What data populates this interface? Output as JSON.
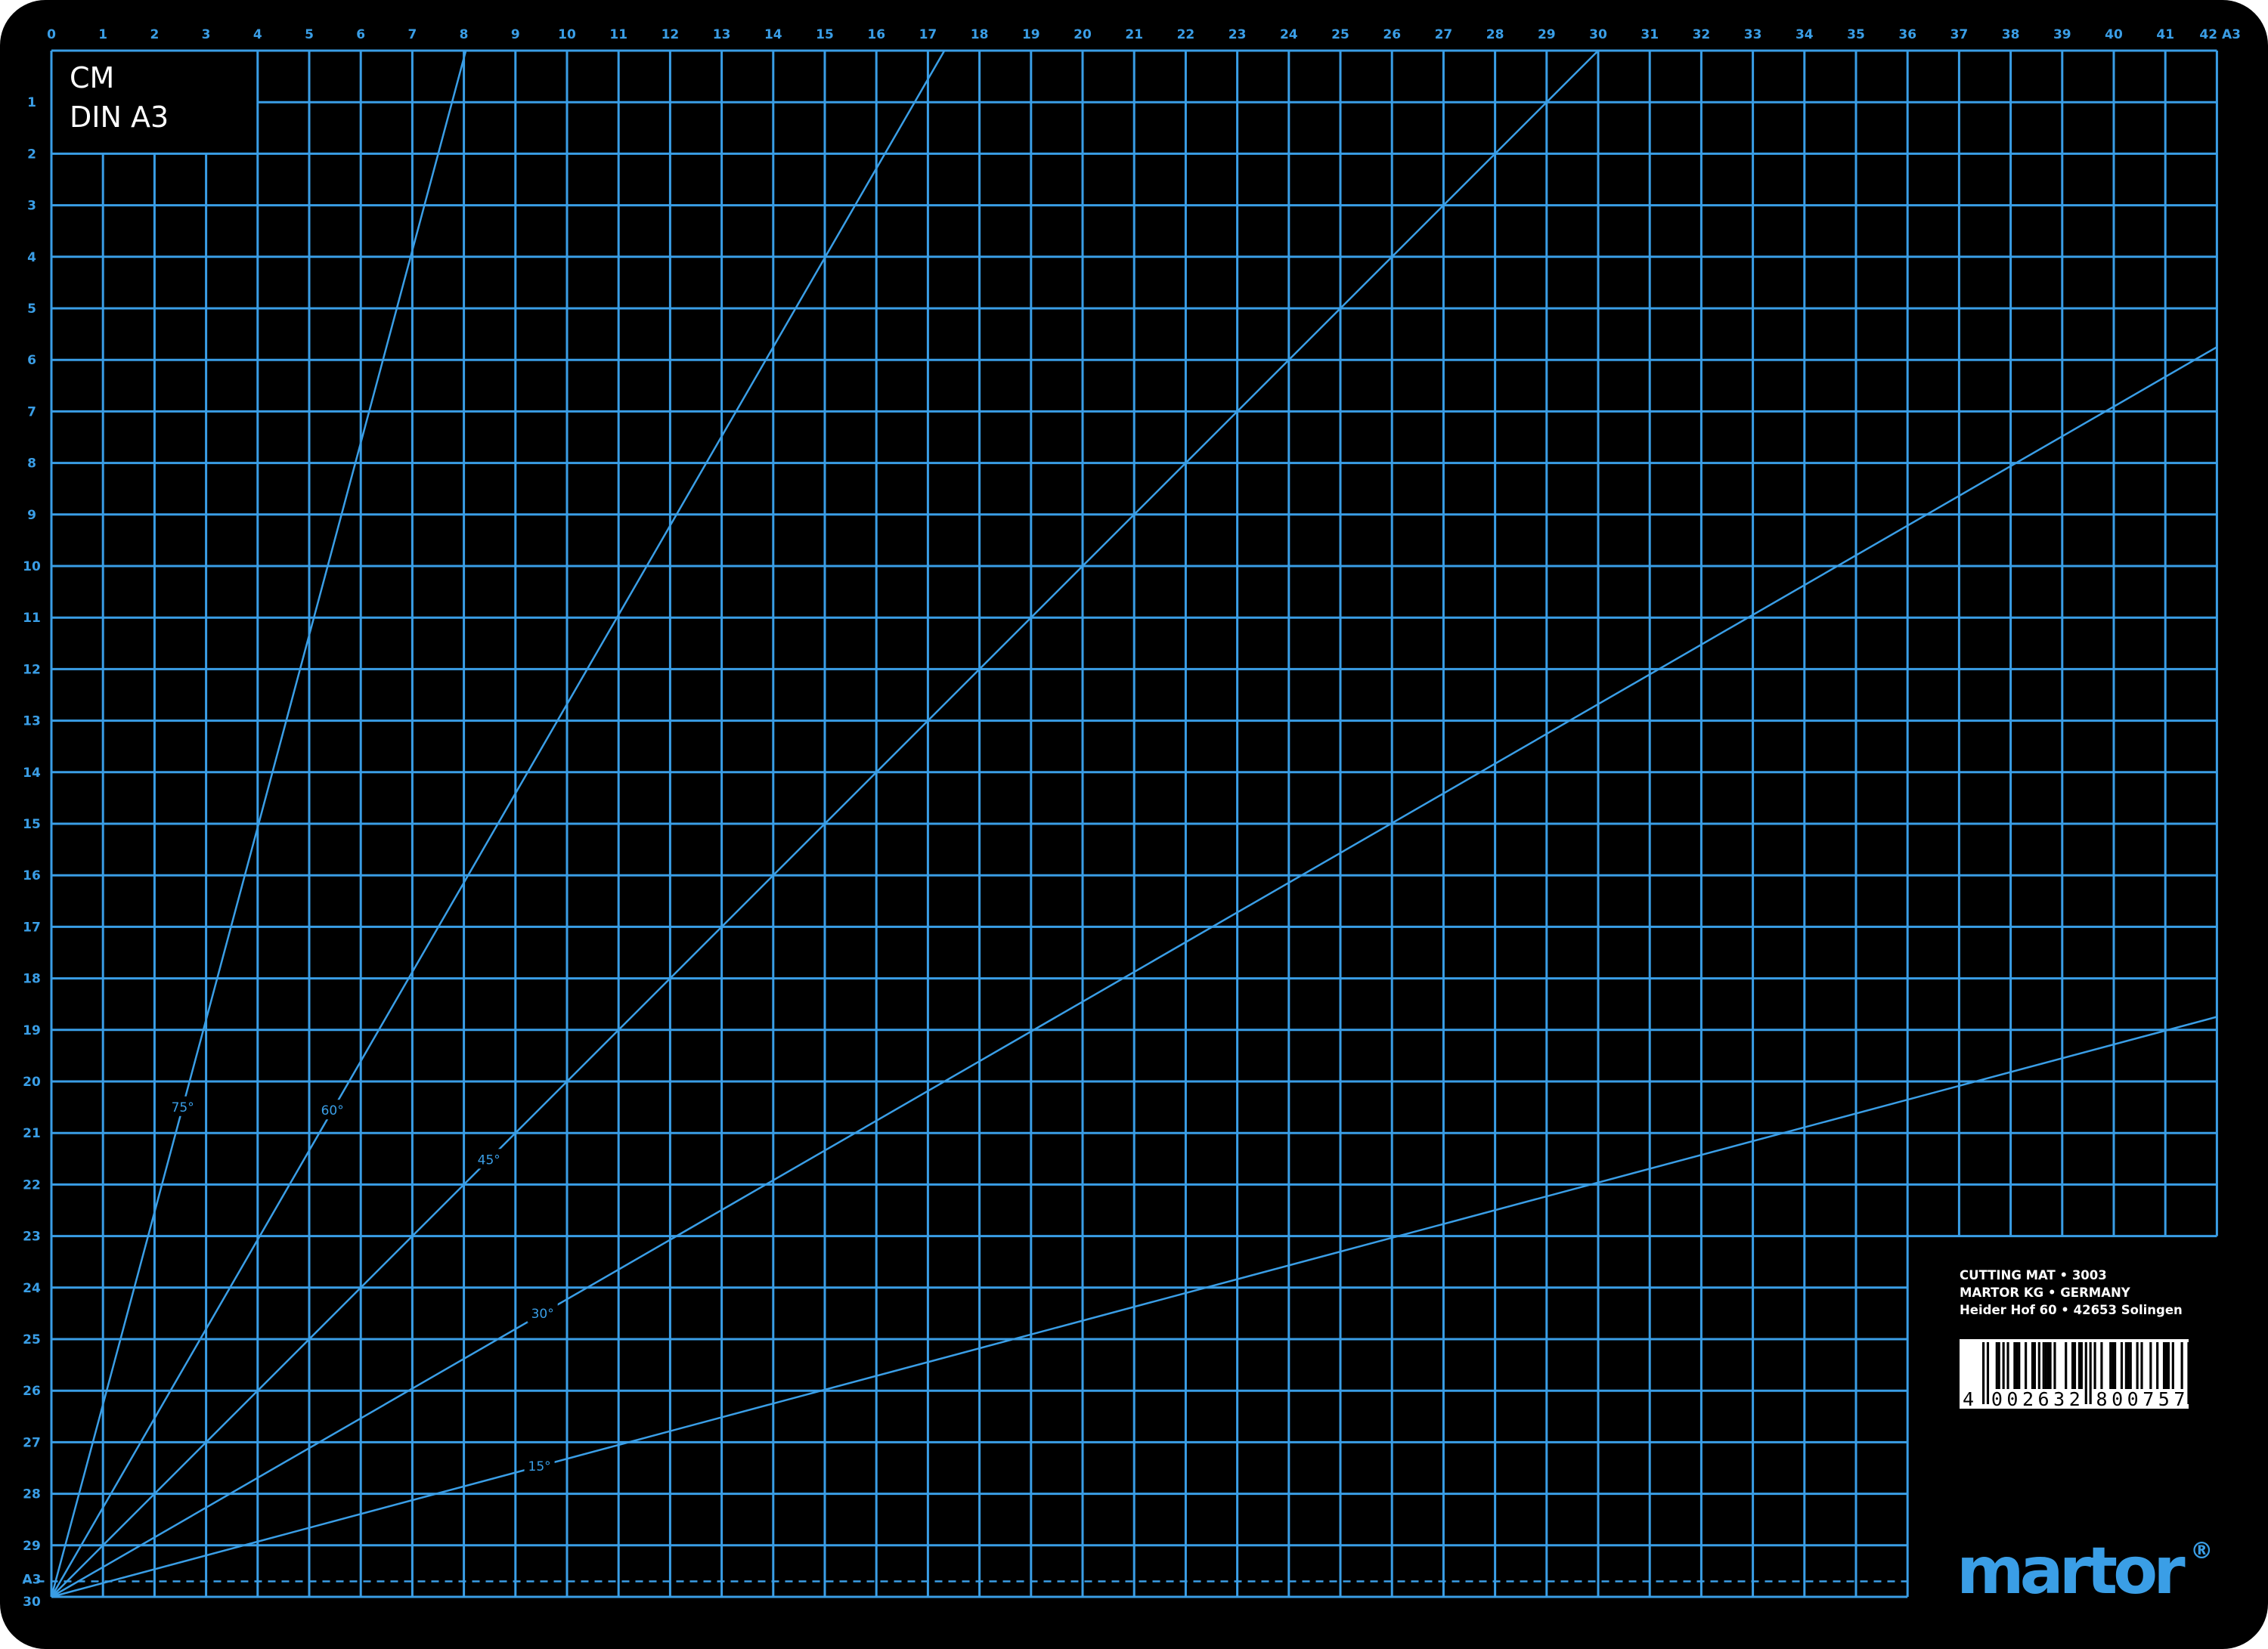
{
  "mat": {
    "unit_label": "CM",
    "format_label": "DIN A3"
  },
  "top_ruler": [
    "0",
    "1",
    "2",
    "3",
    "4",
    "5",
    "6",
    "7",
    "8",
    "9",
    "10",
    "11",
    "12",
    "13",
    "14",
    "15",
    "16",
    "17",
    "18",
    "19",
    "20",
    "21",
    "22",
    "23",
    "24",
    "25",
    "26",
    "27",
    "28",
    "29",
    "30",
    "31",
    "32",
    "33",
    "34",
    "35",
    "36",
    "37",
    "38",
    "39",
    "40",
    "41",
    "42 A3"
  ],
  "left_ruler": [
    "1",
    "2",
    "3",
    "4",
    "5",
    "6",
    "7",
    "8",
    "9",
    "10",
    "11",
    "12",
    "13",
    "14",
    "15",
    "16",
    "17",
    "18",
    "19",
    "20",
    "21",
    "22",
    "23",
    "24",
    "25",
    "26",
    "27",
    "28",
    "29",
    "A3",
    "30"
  ],
  "angles": [
    {
      "degrees": 75,
      "label": "75°"
    },
    {
      "degrees": 60,
      "label": "60°"
    },
    {
      "degrees": 45,
      "label": "45°"
    },
    {
      "degrees": 30,
      "label": "30°"
    },
    {
      "degrees": 15,
      "label": "15°"
    }
  ],
  "info": {
    "lines": [
      "CUTTING MAT • 3003",
      "MARTOR KG • GERMANY",
      "Heider Hof 60 • 42653 Solingen"
    ]
  },
  "barcode": {
    "number": "4002632800757"
  },
  "logo": {
    "text": "martor",
    "mark": "®"
  },
  "colors": {
    "mat": "#000000",
    "grid": "#3a9ee6",
    "text": "#ffffff",
    "background": "#ffffff"
  }
}
